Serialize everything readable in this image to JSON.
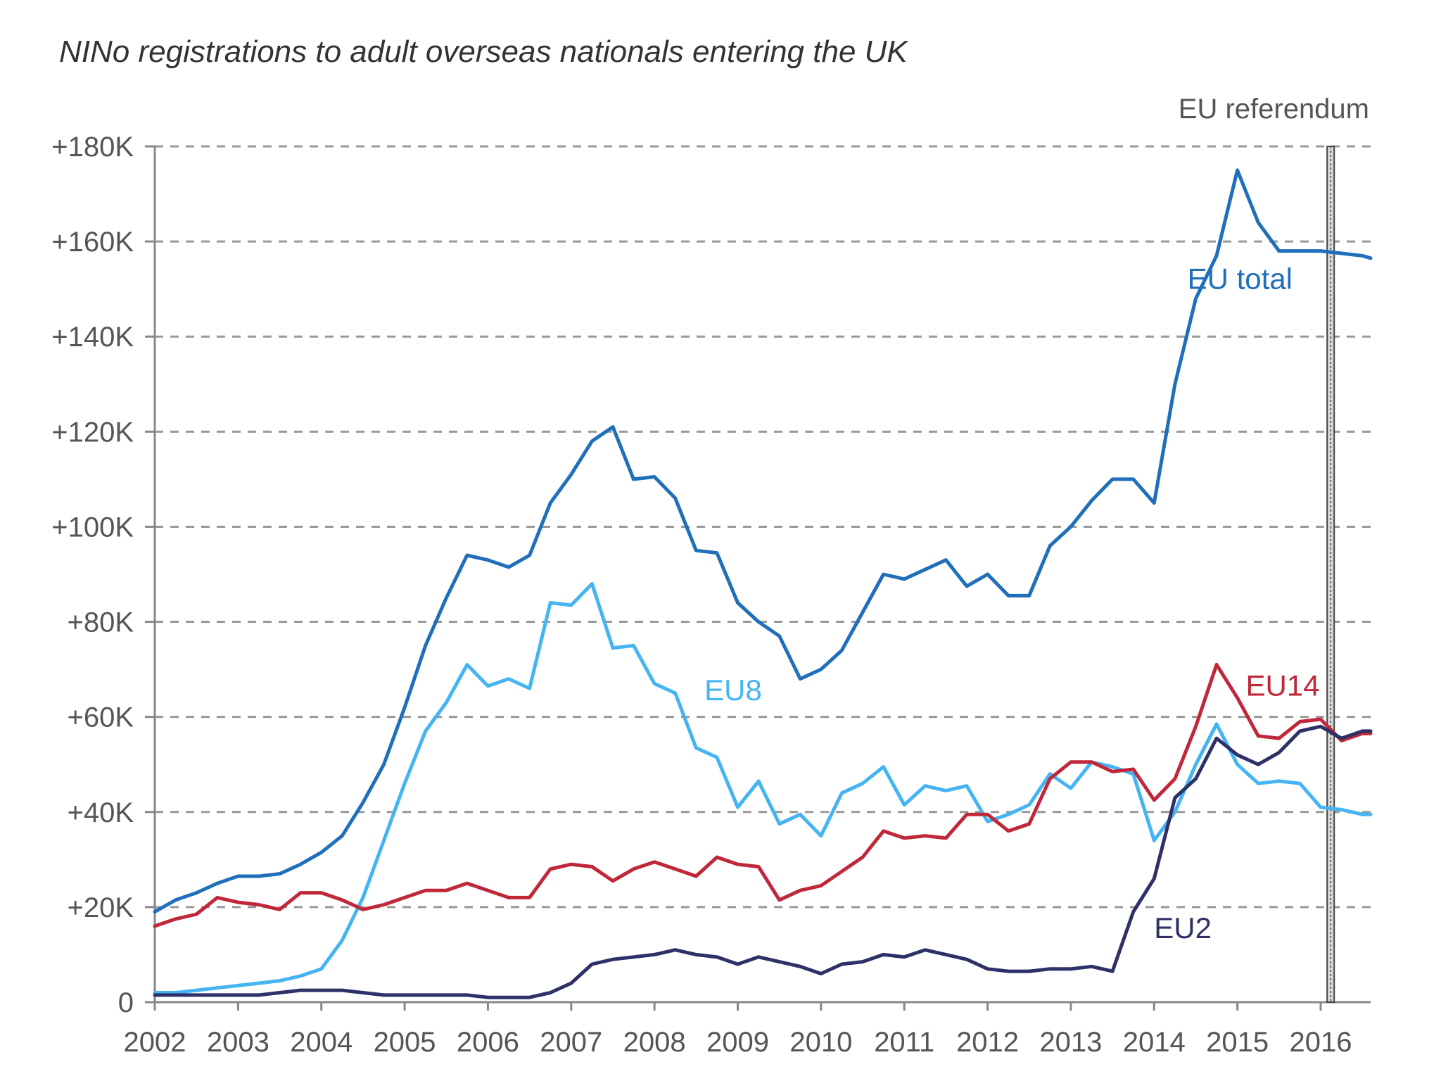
{
  "chart_data": {
    "type": "line",
    "title": "NINo registrations to adult overseas nationals entering the UK",
    "xlabel": "",
    "ylabel": "",
    "ylim": [
      0,
      180000
    ],
    "xlim": [
      2002,
      2016.6
    ],
    "grid": true,
    "x_ticks": [
      2002,
      2003,
      2004,
      2005,
      2006,
      2007,
      2008,
      2009,
      2010,
      2011,
      2012,
      2013,
      2014,
      2015,
      2016
    ],
    "y_ticks": [
      {
        "value": 0,
        "label": "0"
      },
      {
        "value": 20000,
        "label": "+20K"
      },
      {
        "value": 40000,
        "label": "+40K"
      },
      {
        "value": 60000,
        "label": "+60K"
      },
      {
        "value": 80000,
        "label": "+80K"
      },
      {
        "value": 100000,
        "label": "+100K"
      },
      {
        "value": 120000,
        "label": "+120K"
      },
      {
        "value": 140000,
        "label": "+140K"
      },
      {
        "value": 160000,
        "label": "+160K"
      },
      {
        "value": 180000,
        "label": "+180K"
      }
    ],
    "annotations": [
      {
        "text": "EU referendum",
        "x": 2016.12
      }
    ],
    "series": [
      {
        "name": "EU total",
        "color": "#1f6fba",
        "label_pos": {
          "x": 2014.4,
          "y": 150000
        },
        "points": [
          [
            2002,
            19000
          ],
          [
            2002.25,
            21500
          ],
          [
            2002.5,
            23000
          ],
          [
            2002.75,
            25000
          ],
          [
            2003,
            26500
          ],
          [
            2003.25,
            26500
          ],
          [
            2003.5,
            27000
          ],
          [
            2003.75,
            29000
          ],
          [
            2004,
            31500
          ],
          [
            2004.25,
            35000
          ],
          [
            2004.5,
            42000
          ],
          [
            2004.75,
            50000
          ],
          [
            2005,
            62000
          ],
          [
            2005.25,
            75000
          ],
          [
            2005.5,
            85000
          ],
          [
            2005.75,
            94000
          ],
          [
            2006,
            93000
          ],
          [
            2006.25,
            91500
          ],
          [
            2006.5,
            94000
          ],
          [
            2006.75,
            105000
          ],
          [
            2007,
            111000
          ],
          [
            2007.25,
            118000
          ],
          [
            2007.5,
            121000
          ],
          [
            2007.75,
            110000
          ],
          [
            2008,
            110500
          ],
          [
            2008.25,
            106000
          ],
          [
            2008.5,
            95000
          ],
          [
            2008.75,
            94500
          ],
          [
            2009,
            84000
          ],
          [
            2009.25,
            80000
          ],
          [
            2009.5,
            77000
          ],
          [
            2009.75,
            68000
          ],
          [
            2010,
            70000
          ],
          [
            2010.25,
            74000
          ],
          [
            2010.5,
            82000
          ],
          [
            2010.75,
            90000
          ],
          [
            2011,
            89000
          ],
          [
            2011.25,
            91000
          ],
          [
            2011.5,
            93000
          ],
          [
            2011.75,
            87500
          ],
          [
            2012,
            90000
          ],
          [
            2012.25,
            85500
          ],
          [
            2012.5,
            85500
          ],
          [
            2012.75,
            96000
          ],
          [
            2013,
            100000
          ],
          [
            2013.25,
            105500
          ],
          [
            2013.5,
            110000
          ],
          [
            2013.75,
            110000
          ],
          [
            2014,
            105000
          ],
          [
            2014.25,
            130000
          ],
          [
            2014.5,
            148000
          ],
          [
            2014.75,
            157000
          ],
          [
            2015,
            175000
          ],
          [
            2015.25,
            164000
          ],
          [
            2015.5,
            158000
          ],
          [
            2015.75,
            158000
          ],
          [
            2016,
            158000
          ],
          [
            2016.25,
            157500
          ],
          [
            2016.5,
            157000
          ],
          [
            2016.6,
            156500
          ]
        ]
      },
      {
        "name": "EU8",
        "color": "#45b4f2",
        "label_pos": {
          "x": 2008.6,
          "y": 63500
        },
        "points": [
          [
            2002,
            2000
          ],
          [
            2002.25,
            2000
          ],
          [
            2002.5,
            2500
          ],
          [
            2002.75,
            3000
          ],
          [
            2003,
            3500
          ],
          [
            2003.25,
            4000
          ],
          [
            2003.5,
            4500
          ],
          [
            2003.75,
            5500
          ],
          [
            2004,
            7000
          ],
          [
            2004.25,
            13000
          ],
          [
            2004.5,
            22000
          ],
          [
            2004.75,
            34000
          ],
          [
            2005,
            46000
          ],
          [
            2005.25,
            57000
          ],
          [
            2005.5,
            63000
          ],
          [
            2005.75,
            71000
          ],
          [
            2006,
            66500
          ],
          [
            2006.25,
            68000
          ],
          [
            2006.5,
            66000
          ],
          [
            2006.75,
            84000
          ],
          [
            2007,
            83500
          ],
          [
            2007.25,
            88000
          ],
          [
            2007.5,
            74500
          ],
          [
            2007.75,
            75000
          ],
          [
            2008,
            67000
          ],
          [
            2008.25,
            65000
          ],
          [
            2008.5,
            53500
          ],
          [
            2008.75,
            51500
          ],
          [
            2009,
            41000
          ],
          [
            2009.25,
            46500
          ],
          [
            2009.5,
            37500
          ],
          [
            2009.75,
            39500
          ],
          [
            2010,
            35000
          ],
          [
            2010.25,
            44000
          ],
          [
            2010.5,
            46000
          ],
          [
            2010.75,
            49500
          ],
          [
            2011,
            41500
          ],
          [
            2011.25,
            45500
          ],
          [
            2011.5,
            44500
          ],
          [
            2011.75,
            45500
          ],
          [
            2012,
            38000
          ],
          [
            2012.25,
            39500
          ],
          [
            2012.5,
            41500
          ],
          [
            2012.75,
            48000
          ],
          [
            2013,
            45000
          ],
          [
            2013.25,
            50500
          ],
          [
            2013.5,
            49500
          ],
          [
            2013.75,
            48000
          ],
          [
            2014,
            34000
          ],
          [
            2014.25,
            40000
          ],
          [
            2014.5,
            50000
          ],
          [
            2014.75,
            58500
          ],
          [
            2015,
            50000
          ],
          [
            2015.25,
            46000
          ],
          [
            2015.5,
            46500
          ],
          [
            2015.75,
            46000
          ],
          [
            2016,
            41000
          ],
          [
            2016.25,
            40500
          ],
          [
            2016.5,
            39500
          ],
          [
            2016.6,
            39500
          ]
        ]
      },
      {
        "name": "EU14",
        "color": "#c0283a",
        "label_pos": {
          "x": 2015.1,
          "y": 64500
        },
        "points": [
          [
            2002,
            16000
          ],
          [
            2002.25,
            17500
          ],
          [
            2002.5,
            18500
          ],
          [
            2002.75,
            22000
          ],
          [
            2003,
            21000
          ],
          [
            2003.25,
            20500
          ],
          [
            2003.5,
            19500
          ],
          [
            2003.75,
            23000
          ],
          [
            2004,
            23000
          ],
          [
            2004.25,
            21500
          ],
          [
            2004.5,
            19500
          ],
          [
            2004.75,
            20500
          ],
          [
            2005,
            22000
          ],
          [
            2005.25,
            23500
          ],
          [
            2005.5,
            23500
          ],
          [
            2005.75,
            25000
          ],
          [
            2006,
            23500
          ],
          [
            2006.25,
            22000
          ],
          [
            2006.5,
            22000
          ],
          [
            2006.75,
            28000
          ],
          [
            2007,
            29000
          ],
          [
            2007.25,
            28500
          ],
          [
            2007.5,
            25500
          ],
          [
            2007.75,
            28000
          ],
          [
            2008,
            29500
          ],
          [
            2008.25,
            28000
          ],
          [
            2008.5,
            26500
          ],
          [
            2008.75,
            30500
          ],
          [
            2009,
            29000
          ],
          [
            2009.25,
            28500
          ],
          [
            2009.5,
            21500
          ],
          [
            2009.75,
            23500
          ],
          [
            2010,
            24500
          ],
          [
            2010.25,
            27500
          ],
          [
            2010.5,
            30500
          ],
          [
            2010.75,
            36000
          ],
          [
            2011,
            34500
          ],
          [
            2011.25,
            35000
          ],
          [
            2011.5,
            34500
          ],
          [
            2011.75,
            39500
          ],
          [
            2012,
            39500
          ],
          [
            2012.25,
            36000
          ],
          [
            2012.5,
            37500
          ],
          [
            2012.75,
            47000
          ],
          [
            2013,
            50500
          ],
          [
            2013.25,
            50500
          ],
          [
            2013.5,
            48500
          ],
          [
            2013.75,
            49000
          ],
          [
            2014,
            42500
          ],
          [
            2014.25,
            47000
          ],
          [
            2014.5,
            58000
          ],
          [
            2014.75,
            71000
          ],
          [
            2015,
            64000
          ],
          [
            2015.25,
            56000
          ],
          [
            2015.5,
            55500
          ],
          [
            2015.75,
            59000
          ],
          [
            2016,
            59500
          ],
          [
            2016.25,
            55000
          ],
          [
            2016.5,
            56500
          ],
          [
            2016.6,
            56500
          ]
        ]
      },
      {
        "name": "EU2",
        "color": "#2e3168",
        "label_pos": {
          "x": 2014.0,
          "y": 13500
        },
        "points": [
          [
            2002,
            1500
          ],
          [
            2002.25,
            1500
          ],
          [
            2002.5,
            1500
          ],
          [
            2002.75,
            1500
          ],
          [
            2003,
            1500
          ],
          [
            2003.25,
            1500
          ],
          [
            2003.5,
            2000
          ],
          [
            2003.75,
            2500
          ],
          [
            2004,
            2500
          ],
          [
            2004.25,
            2500
          ],
          [
            2004.5,
            2000
          ],
          [
            2004.75,
            1500
          ],
          [
            2005,
            1500
          ],
          [
            2005.25,
            1500
          ],
          [
            2005.5,
            1500
          ],
          [
            2005.75,
            1500
          ],
          [
            2006,
            1000
          ],
          [
            2006.25,
            1000
          ],
          [
            2006.5,
            1000
          ],
          [
            2006.75,
            2000
          ],
          [
            2007,
            4000
          ],
          [
            2007.25,
            8000
          ],
          [
            2007.5,
            9000
          ],
          [
            2007.75,
            9500
          ],
          [
            2008,
            10000
          ],
          [
            2008.25,
            11000
          ],
          [
            2008.5,
            10000
          ],
          [
            2008.75,
            9500
          ],
          [
            2009,
            8000
          ],
          [
            2009.25,
            9500
          ],
          [
            2009.5,
            8500
          ],
          [
            2009.75,
            7500
          ],
          [
            2010,
            6000
          ],
          [
            2010.25,
            8000
          ],
          [
            2010.5,
            8500
          ],
          [
            2010.75,
            10000
          ],
          [
            2011,
            9500
          ],
          [
            2011.25,
            11000
          ],
          [
            2011.5,
            10000
          ],
          [
            2011.75,
            9000
          ],
          [
            2012,
            7000
          ],
          [
            2012.25,
            6500
          ],
          [
            2012.5,
            6500
          ],
          [
            2012.75,
            7000
          ],
          [
            2013,
            7000
          ],
          [
            2013.25,
            7500
          ],
          [
            2013.5,
            6500
          ],
          [
            2013.75,
            19000
          ],
          [
            2014,
            26000
          ],
          [
            2014.25,
            43000
          ],
          [
            2014.5,
            47000
          ],
          [
            2014.75,
            55500
          ],
          [
            2015,
            52000
          ],
          [
            2015.25,
            50000
          ],
          [
            2015.5,
            52500
          ],
          [
            2015.75,
            57000
          ],
          [
            2016,
            58000
          ],
          [
            2016.25,
            55500
          ],
          [
            2016.5,
            57000
          ],
          [
            2016.6,
            57000
          ]
        ]
      }
    ]
  }
}
